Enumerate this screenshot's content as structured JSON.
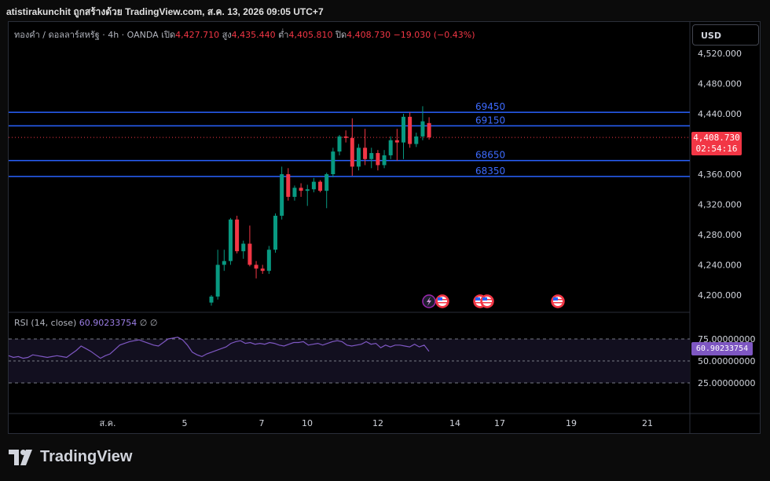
{
  "header": {
    "caption": "atistirakunchit ถูกสร้างด้วย TradingView.com, ส.ค. 13, 2026 09:05 UTC+7"
  },
  "legend": {
    "symbol": "ทองคำ / ดอลลาร์สหรัฐ · 4h · OANDA",
    "open_label": "เปิด",
    "open": "4,427.710",
    "high_label": "สูง",
    "high": "4,435.440",
    "low_label": "ต่ำ",
    "low": "4,405.810",
    "close_label": "ปิด",
    "close": "4,408.730",
    "change": "−19.030 (−0.43%)"
  },
  "currency_button": "USD",
  "price_axis": {
    "ticks": [
      "4,520.000",
      "4,480.000",
      "4,440.000",
      "4,360.000",
      "4,320.000",
      "4,280.000",
      "4,240.000",
      "4,200.000"
    ]
  },
  "current_price": {
    "value": "4,408.730",
    "countdown": "02:54:16"
  },
  "levels": [
    {
      "label": "69450",
      "price": 4442
    },
    {
      "label": "69150",
      "price": 4424
    },
    {
      "label": "68650",
      "price": 4378
    },
    {
      "label": "68350",
      "price": 4357
    }
  ],
  "rsi": {
    "title": "RSI (14, close)",
    "value": "60.90233754",
    "extra": "∅  ∅",
    "ticks": [
      "75.00000000",
      "50.00000000",
      "25.00000000"
    ],
    "tag": "60.90233754"
  },
  "time_axis": {
    "labels": [
      "ส.ค.",
      "5",
      "7",
      "10",
      "12",
      "14",
      "17",
      "19",
      "21"
    ]
  },
  "colors": {
    "up": "#089981",
    "down": "#f23645",
    "level": "#2962ff",
    "rsi": "#7e57c2"
  },
  "events": [
    "lightning-icon",
    "us-flag-icon",
    "us-flag-icon",
    "us-flag-icon",
    "us-flag-icon"
  ],
  "brand": "TradingView",
  "chart_data": {
    "type": "candlestick",
    "candles": [
      {
        "o": 4190,
        "h": 4200,
        "l": 4186,
        "c": 4198
      },
      {
        "o": 4198,
        "h": 4260,
        "l": 4194,
        "c": 4240
      },
      {
        "o": 4240,
        "h": 4260,
        "l": 4232,
        "c": 4245
      },
      {
        "o": 4245,
        "h": 4302,
        "l": 4240,
        "c": 4300
      },
      {
        "o": 4300,
        "h": 4305,
        "l": 4255,
        "c": 4258
      },
      {
        "o": 4258,
        "h": 4272,
        "l": 4248,
        "c": 4268
      },
      {
        "o": 4268,
        "h": 4292,
        "l": 4238,
        "c": 4240
      },
      {
        "o": 4240,
        "h": 4245,
        "l": 4222,
        "c": 4235
      },
      {
        "o": 4235,
        "h": 4240,
        "l": 4228,
        "c": 4232
      },
      {
        "o": 4232,
        "h": 4265,
        "l": 4228,
        "c": 4260
      },
      {
        "o": 4260,
        "h": 4308,
        "l": 4256,
        "c": 4305
      },
      {
        "o": 4305,
        "h": 4370,
        "l": 4300,
        "c": 4360
      },
      {
        "o": 4360,
        "h": 4368,
        "l": 4325,
        "c": 4330
      },
      {
        "o": 4330,
        "h": 4345,
        "l": 4325,
        "c": 4342
      },
      {
        "o": 4342,
        "h": 4348,
        "l": 4330,
        "c": 4338
      },
      {
        "o": 4338,
        "h": 4346,
        "l": 4318,
        "c": 4340
      },
      {
        "o": 4340,
        "h": 4355,
        "l": 4336,
        "c": 4350
      },
      {
        "o": 4350,
        "h": 4352,
        "l": 4336,
        "c": 4338
      },
      {
        "o": 4338,
        "h": 4362,
        "l": 4315,
        "c": 4360
      },
      {
        "o": 4360,
        "h": 4395,
        "l": 4356,
        "c": 4390
      },
      {
        "o": 4390,
        "h": 4412,
        "l": 4385,
        "c": 4410
      },
      {
        "o": 4410,
        "h": 4418,
        "l": 4402,
        "c": 4408
      },
      {
        "o": 4408,
        "h": 4434,
        "l": 4358,
        "c": 4370
      },
      {
        "o": 4370,
        "h": 4400,
        "l": 4365,
        "c": 4395
      },
      {
        "o": 4395,
        "h": 4420,
        "l": 4372,
        "c": 4380
      },
      {
        "o": 4380,
        "h": 4395,
        "l": 4368,
        "c": 4388
      },
      {
        "o": 4388,
        "h": 4392,
        "l": 4365,
        "c": 4372
      },
      {
        "o": 4372,
        "h": 4392,
        "l": 4368,
        "c": 4385
      },
      {
        "o": 4385,
        "h": 4410,
        "l": 4380,
        "c": 4405
      },
      {
        "o": 4405,
        "h": 4420,
        "l": 4378,
        "c": 4402
      },
      {
        "o": 4402,
        "h": 4440,
        "l": 4380,
        "c": 4436
      },
      {
        "o": 4436,
        "h": 4442,
        "l": 4395,
        "c": 4400
      },
      {
        "o": 4400,
        "h": 4415,
        "l": 4396,
        "c": 4410
      },
      {
        "o": 4410,
        "h": 4450,
        "l": 4405,
        "c": 4430
      },
      {
        "o": 4427.71,
        "h": 4435.44,
        "l": 4405.81,
        "c": 4408.73
      }
    ],
    "rsi": [
      56,
      54,
      55,
      53,
      54,
      57,
      56,
      55,
      54,
      55,
      56,
      55,
      54,
      58,
      62,
      67,
      64,
      61,
      57,
      53,
      56,
      58,
      63,
      68,
      70,
      72,
      73,
      74,
      72,
      70,
      68,
      67,
      71,
      75,
      76,
      77,
      74,
      68,
      60,
      57,
      55,
      58,
      60,
      62,
      64,
      66,
      70,
      72,
      73,
      70,
      71,
      69,
      70,
      69,
      71,
      70,
      68,
      67,
      69,
      71,
      71,
      72,
      68,
      69,
      70,
      68,
      70,
      72,
      73,
      72,
      68,
      67,
      68,
      69,
      72,
      69,
      70,
      65,
      68,
      66,
      68,
      68,
      67,
      66,
      69,
      66,
      68,
      61
    ]
  }
}
